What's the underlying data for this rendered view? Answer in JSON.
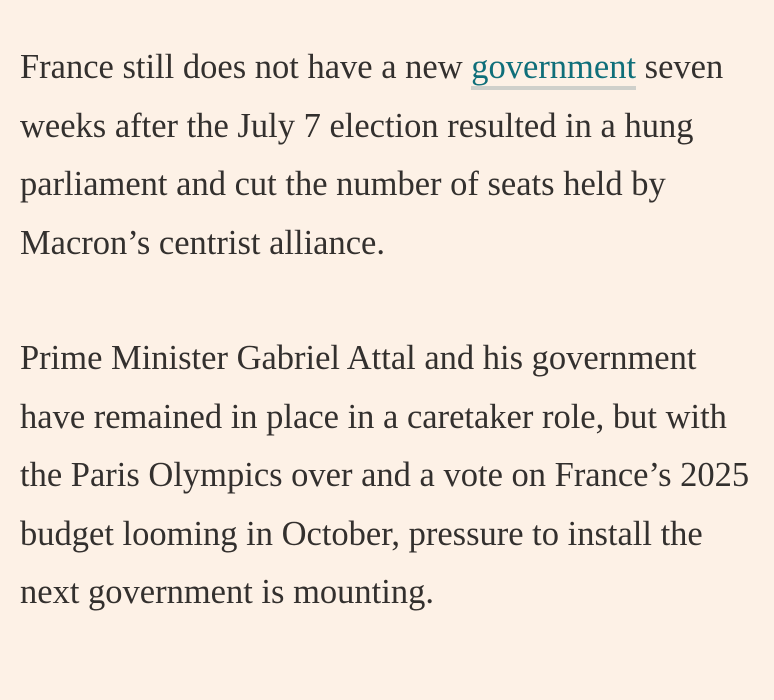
{
  "article": {
    "paragraphs": [
      {
        "before_link": "France still does not have a new ",
        "link": "government",
        "after_link": " seven weeks after the July 7 election resulted in a hung parliament and cut the number of seats held by Macron’s centrist alliance."
      },
      {
        "text": "Prime Minister Gabriel Attal and his government have remained in place in a caretaker role, but with the Paris Olympics over and a vote on France’s 2025 budget looming in October, pressure to install the next government is mounting."
      }
    ]
  }
}
